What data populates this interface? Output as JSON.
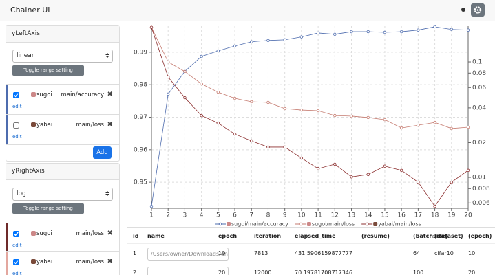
{
  "navbar": {
    "title": "Chainer UI"
  },
  "sidebar": {
    "left_axis": {
      "title": "yLeftAxis",
      "scale": "linear",
      "toggle": "Toggle range setting",
      "lines": [
        {
          "result": "sugoi",
          "key": "main/accuracy",
          "edit": "edit",
          "checked": true
        },
        {
          "result": "yabai",
          "key": "main/loss",
          "edit": "edit",
          "checked": false
        }
      ],
      "add": "Add"
    },
    "right_axis": {
      "title": "yRightAxis",
      "scale": "log",
      "toggle": "Toggle range setting",
      "lines": [
        {
          "result": "sugoi",
          "key": "main/loss",
          "edit": "edit",
          "checked": true
        },
        {
          "result": "yabai",
          "key": "main/loss",
          "edit": "edit",
          "checked": true
        }
      ]
    }
  },
  "chart": {
    "type": "line",
    "x": [
      1,
      2,
      3,
      4,
      5,
      6,
      7,
      8,
      9,
      10,
      11,
      12,
      13,
      14,
      15,
      16,
      17,
      18,
      19,
      20
    ],
    "xlim": [
      1,
      20
    ],
    "xticks": [
      1,
      2,
      3,
      4,
      5,
      6,
      7,
      8,
      9,
      10,
      11,
      12,
      13,
      14,
      15,
      16,
      17,
      18,
      19,
      20
    ],
    "ylim": [
      0.942,
      0.998
    ],
    "yticks": [
      0.95,
      0.96,
      0.97,
      0.98,
      0.99
    ],
    "y2lim": [
      0.0054,
      0.204
    ],
    "y2ticks": [
      0.006,
      0.008,
      0.01,
      0.02,
      0.04,
      0.06,
      0.08,
      0.1
    ],
    "y2scale": "log",
    "grid": true,
    "legend": "bottom",
    "series": [
      {
        "name": "sugoi/main/accuracy",
        "color": "#4e6cae",
        "axis": "y",
        "values": [
          0.9426,
          0.9771,
          0.9841,
          0.9887,
          0.9904,
          0.9919,
          0.9932,
          0.9936,
          0.9938,
          0.9947,
          0.9959,
          0.9955,
          0.9963,
          0.9963,
          0.9961,
          0.9963,
          0.9968,
          0.9978,
          0.997,
          0.9968
        ]
      },
      {
        "name": "sugoi/main/loss",
        "color": "#c57b70",
        "axis": "y2",
        "values": [
          0.199,
          0.1,
          0.0826,
          0.0645,
          0.0547,
          0.0484,
          0.0452,
          0.0446,
          0.0394,
          0.0383,
          0.0378,
          0.0343,
          0.0339,
          0.033,
          0.0316,
          0.0268,
          0.0283,
          0.0299,
          0.0265,
          0.0272
        ]
      },
      {
        "name": "yabai/main/loss",
        "color": "#8c2f2f",
        "axis": "y2",
        "values": [
          0.199,
          0.074,
          0.049,
          0.0343,
          0.0295,
          0.0237,
          0.0207,
          0.0183,
          0.0183,
          0.0147,
          0.0119,
          0.013,
          0.0101,
          0.0106,
          0.0125,
          0.0115,
          0.00908,
          0.00562,
          0.00908,
          0.0115
        ]
      }
    ]
  },
  "table": {
    "columns": [
      "id",
      "name",
      "epoch",
      "iteration",
      "elapsed_time",
      "(resume)",
      "(batchsize)",
      "(dataset)",
      "(epoch)"
    ],
    "rows": [
      {
        "id": 1,
        "name": "/Users/owner/Downloads/dn",
        "epoch": 10,
        "iteration": 7813,
        "elapsed_time": 431.5906159877777,
        "batchsize": 64,
        "dataset": "cifar10",
        "epoch_arg": 10
      },
      {
        "id": 2,
        "epoch": 20,
        "iteration": 12000,
        "elapsed_time": 70.19781708717346,
        "batchsize": 100,
        "epoch_arg": 20
      }
    ]
  }
}
